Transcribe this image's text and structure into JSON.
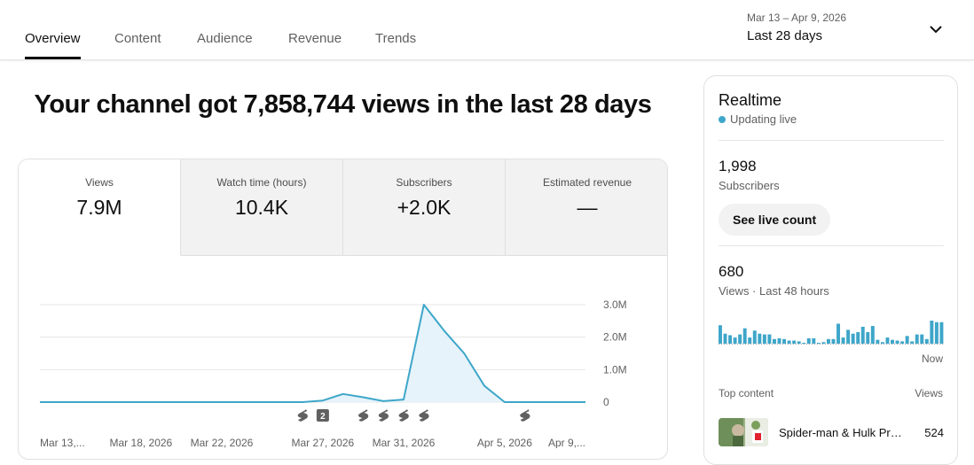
{
  "tabs": [
    {
      "label": "Overview",
      "active": true
    },
    {
      "label": "Content",
      "active": false
    },
    {
      "label": "Audience",
      "active": false
    },
    {
      "label": "Revenue",
      "active": false
    },
    {
      "label": "Trends",
      "active": false
    }
  ],
  "date_picker": {
    "range": "Mar 13 – Apr 9, 2026",
    "label": "Last 28 days",
    "icon": "chevron-down-icon"
  },
  "headline": "Your channel got 7,858,744 views in the last 28 days",
  "metrics": [
    {
      "label": "Views",
      "value": "7.9M"
    },
    {
      "label": "Watch time (hours)",
      "value": "10.4K"
    },
    {
      "label": "Subscribers",
      "value": "+2.0K"
    },
    {
      "label": "Estimated revenue",
      "value": "—"
    }
  ],
  "chart_data": {
    "type": "area",
    "series": [
      {
        "values": [
          0,
          0,
          0,
          0,
          0,
          0,
          0,
          0,
          0,
          0,
          0,
          0,
          0,
          0,
          0.05,
          0.25,
          0.15,
          0.03,
          0.08,
          3.0,
          2.2,
          1.5,
          0.5,
          0,
          0,
          0,
          0,
          0
        ]
      }
    ],
    "x": [
      "Mar 13",
      "Mar 14",
      "Mar 15",
      "Mar 16",
      "Mar 17",
      "Mar 18",
      "Mar 19",
      "Mar 20",
      "Mar 21",
      "Mar 22",
      "Mar 23",
      "Mar 24",
      "Mar 25",
      "Mar 26",
      "Mar 27",
      "Mar 28",
      "Mar 29",
      "Mar 30",
      "Mar 31",
      "Apr 1",
      "Apr 2",
      "Apr 3",
      "Apr 4",
      "Apr 5",
      "Apr 6",
      "Apr 7",
      "Apr 8",
      "Apr 9"
    ],
    "x_tick_labels": [
      "Mar 13,...",
      "Mar 18, 2026",
      "Mar 22, 2026",
      "Mar 27, 2026",
      "Mar 31, 2026",
      "Apr 5, 2026",
      "Apr 9,..."
    ],
    "y_tick_labels": [
      "3.0M",
      "2.0M",
      "1.0M",
      "0"
    ],
    "y_ticks": [
      3.0,
      2.0,
      1.0,
      0
    ],
    "ylim": [
      0,
      3.0
    ],
    "unit": "M",
    "grid": true,
    "color": "#3ea6c9",
    "fill_color": "#e6f3fa",
    "markers": [
      {
        "icon": "shorts-icon",
        "x": "Mar 26"
      },
      {
        "icon": "count-badge",
        "label": "2",
        "x": "Mar 27"
      },
      {
        "icon": "shorts-icon",
        "x": "Mar 29"
      },
      {
        "icon": "shorts-icon",
        "x": "Mar 30"
      },
      {
        "icon": "shorts-icon",
        "x": "Mar 31"
      },
      {
        "icon": "shorts-icon",
        "x": "Apr 1"
      },
      {
        "icon": "shorts-icon",
        "x": "Apr 6"
      }
    ]
  },
  "realtime": {
    "title": "Realtime",
    "status": "Updating live",
    "status_color": "#3ea6c9",
    "subscribers_value": "1,998",
    "subscribers_label": "Subscribers",
    "live_button": "See live count",
    "views_value": "680",
    "views_label": "Views · Last 48 hours",
    "now_label": "Now",
    "mini_bars": [
      24,
      13,
      11,
      8,
      12,
      20,
      8,
      17,
      13,
      12,
      12,
      6,
      7,
      6,
      4,
      4,
      3,
      0,
      7,
      7,
      0,
      2,
      6,
      6,
      26,
      8,
      18,
      13,
      15,
      22,
      15,
      23,
      5,
      2,
      8,
      5,
      4,
      3,
      10,
      3,
      12,
      12,
      6,
      30,
      28,
      28
    ],
    "top_content_label": "Top content",
    "views_col_label": "Views",
    "top_item": {
      "title": "Spider-man & Hulk Pra...",
      "views": "524"
    }
  }
}
